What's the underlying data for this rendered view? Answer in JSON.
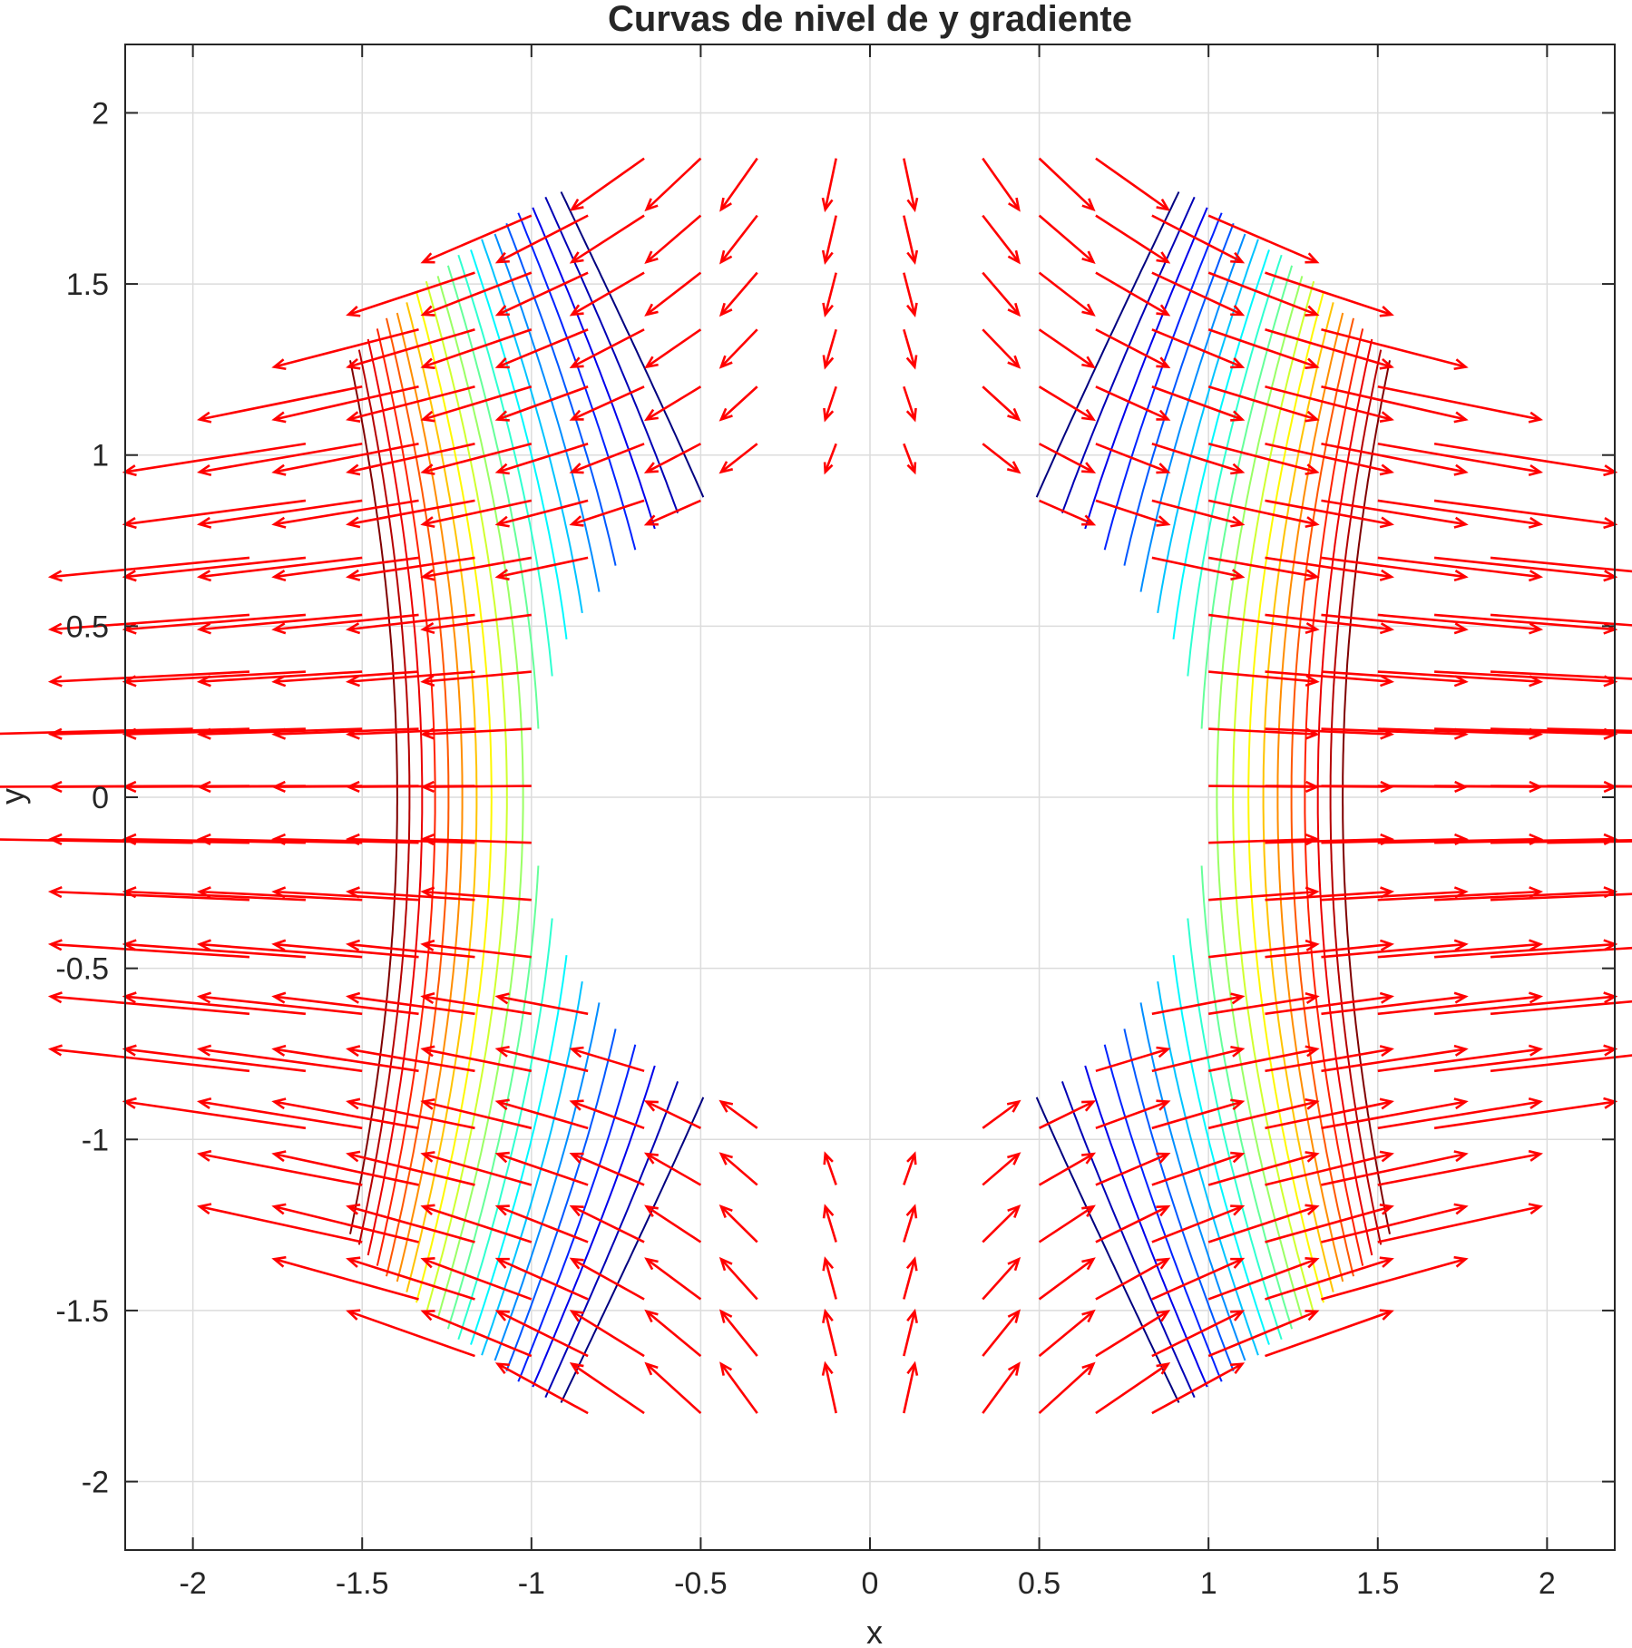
{
  "chart_data": {
    "type": "contour+quiver",
    "title": "Curvas de nivel de y gradiente",
    "xlabel": "x",
    "ylabel": "y",
    "xlim": [
      -2.2,
      2.2
    ],
    "ylim": [
      -2.2,
      2.2
    ],
    "xticks": [
      -2,
      -1.5,
      -1,
      -0.5,
      0,
      0.5,
      1,
      1.5,
      2
    ],
    "yticks": [
      -2,
      -1.5,
      -1,
      -0.5,
      0,
      0.5,
      1,
      1.5,
      2
    ],
    "xtick_labels": [
      "-2",
      "-1.5",
      "-1",
      "-0.5",
      "0",
      "0.5",
      "1",
      "1.5",
      "2"
    ],
    "ytick_labels": [
      "-2",
      "-1.5",
      "-1",
      "-0.5",
      "0",
      "0.5",
      "1",
      "1.5",
      "2"
    ],
    "grid": true,
    "colormap": "jet",
    "domain": "annulus 1 <= x^2 + y^2 <= 4",
    "contour_levels": [
      0.05,
      0.15,
      0.25,
      0.35,
      0.45,
      0.55,
      0.65,
      0.75,
      0.85,
      0.95,
      1.05,
      1.15,
      1.25,
      1.35,
      1.45,
      1.55,
      1.65,
      1.75,
      1.85,
      1.95
    ],
    "quiver_grid": {
      "x": [
        -2.0,
        -1.833,
        -1.667,
        -1.5,
        -1.333,
        -1.167,
        -1.0,
        -0.833,
        -0.667,
        -0.5,
        -0.333,
        -0.1,
        0.1,
        0.333,
        0.5,
        0.667,
        0.833,
        1.0,
        1.167,
        1.333,
        1.5,
        1.667,
        1.833,
        2.0
      ],
      "y": [
        -1.8,
        -1.633,
        -1.467,
        -1.3,
        -1.133,
        -0.967,
        -0.8,
        -0.633,
        -0.467,
        -0.3,
        -0.133,
        0.033,
        0.2,
        0.367,
        0.533,
        0.7,
        0.867,
        1.033,
        1.2,
        1.367,
        1.533,
        1.7,
        1.867
      ]
    },
    "arrow_color": "#ff0000"
  }
}
